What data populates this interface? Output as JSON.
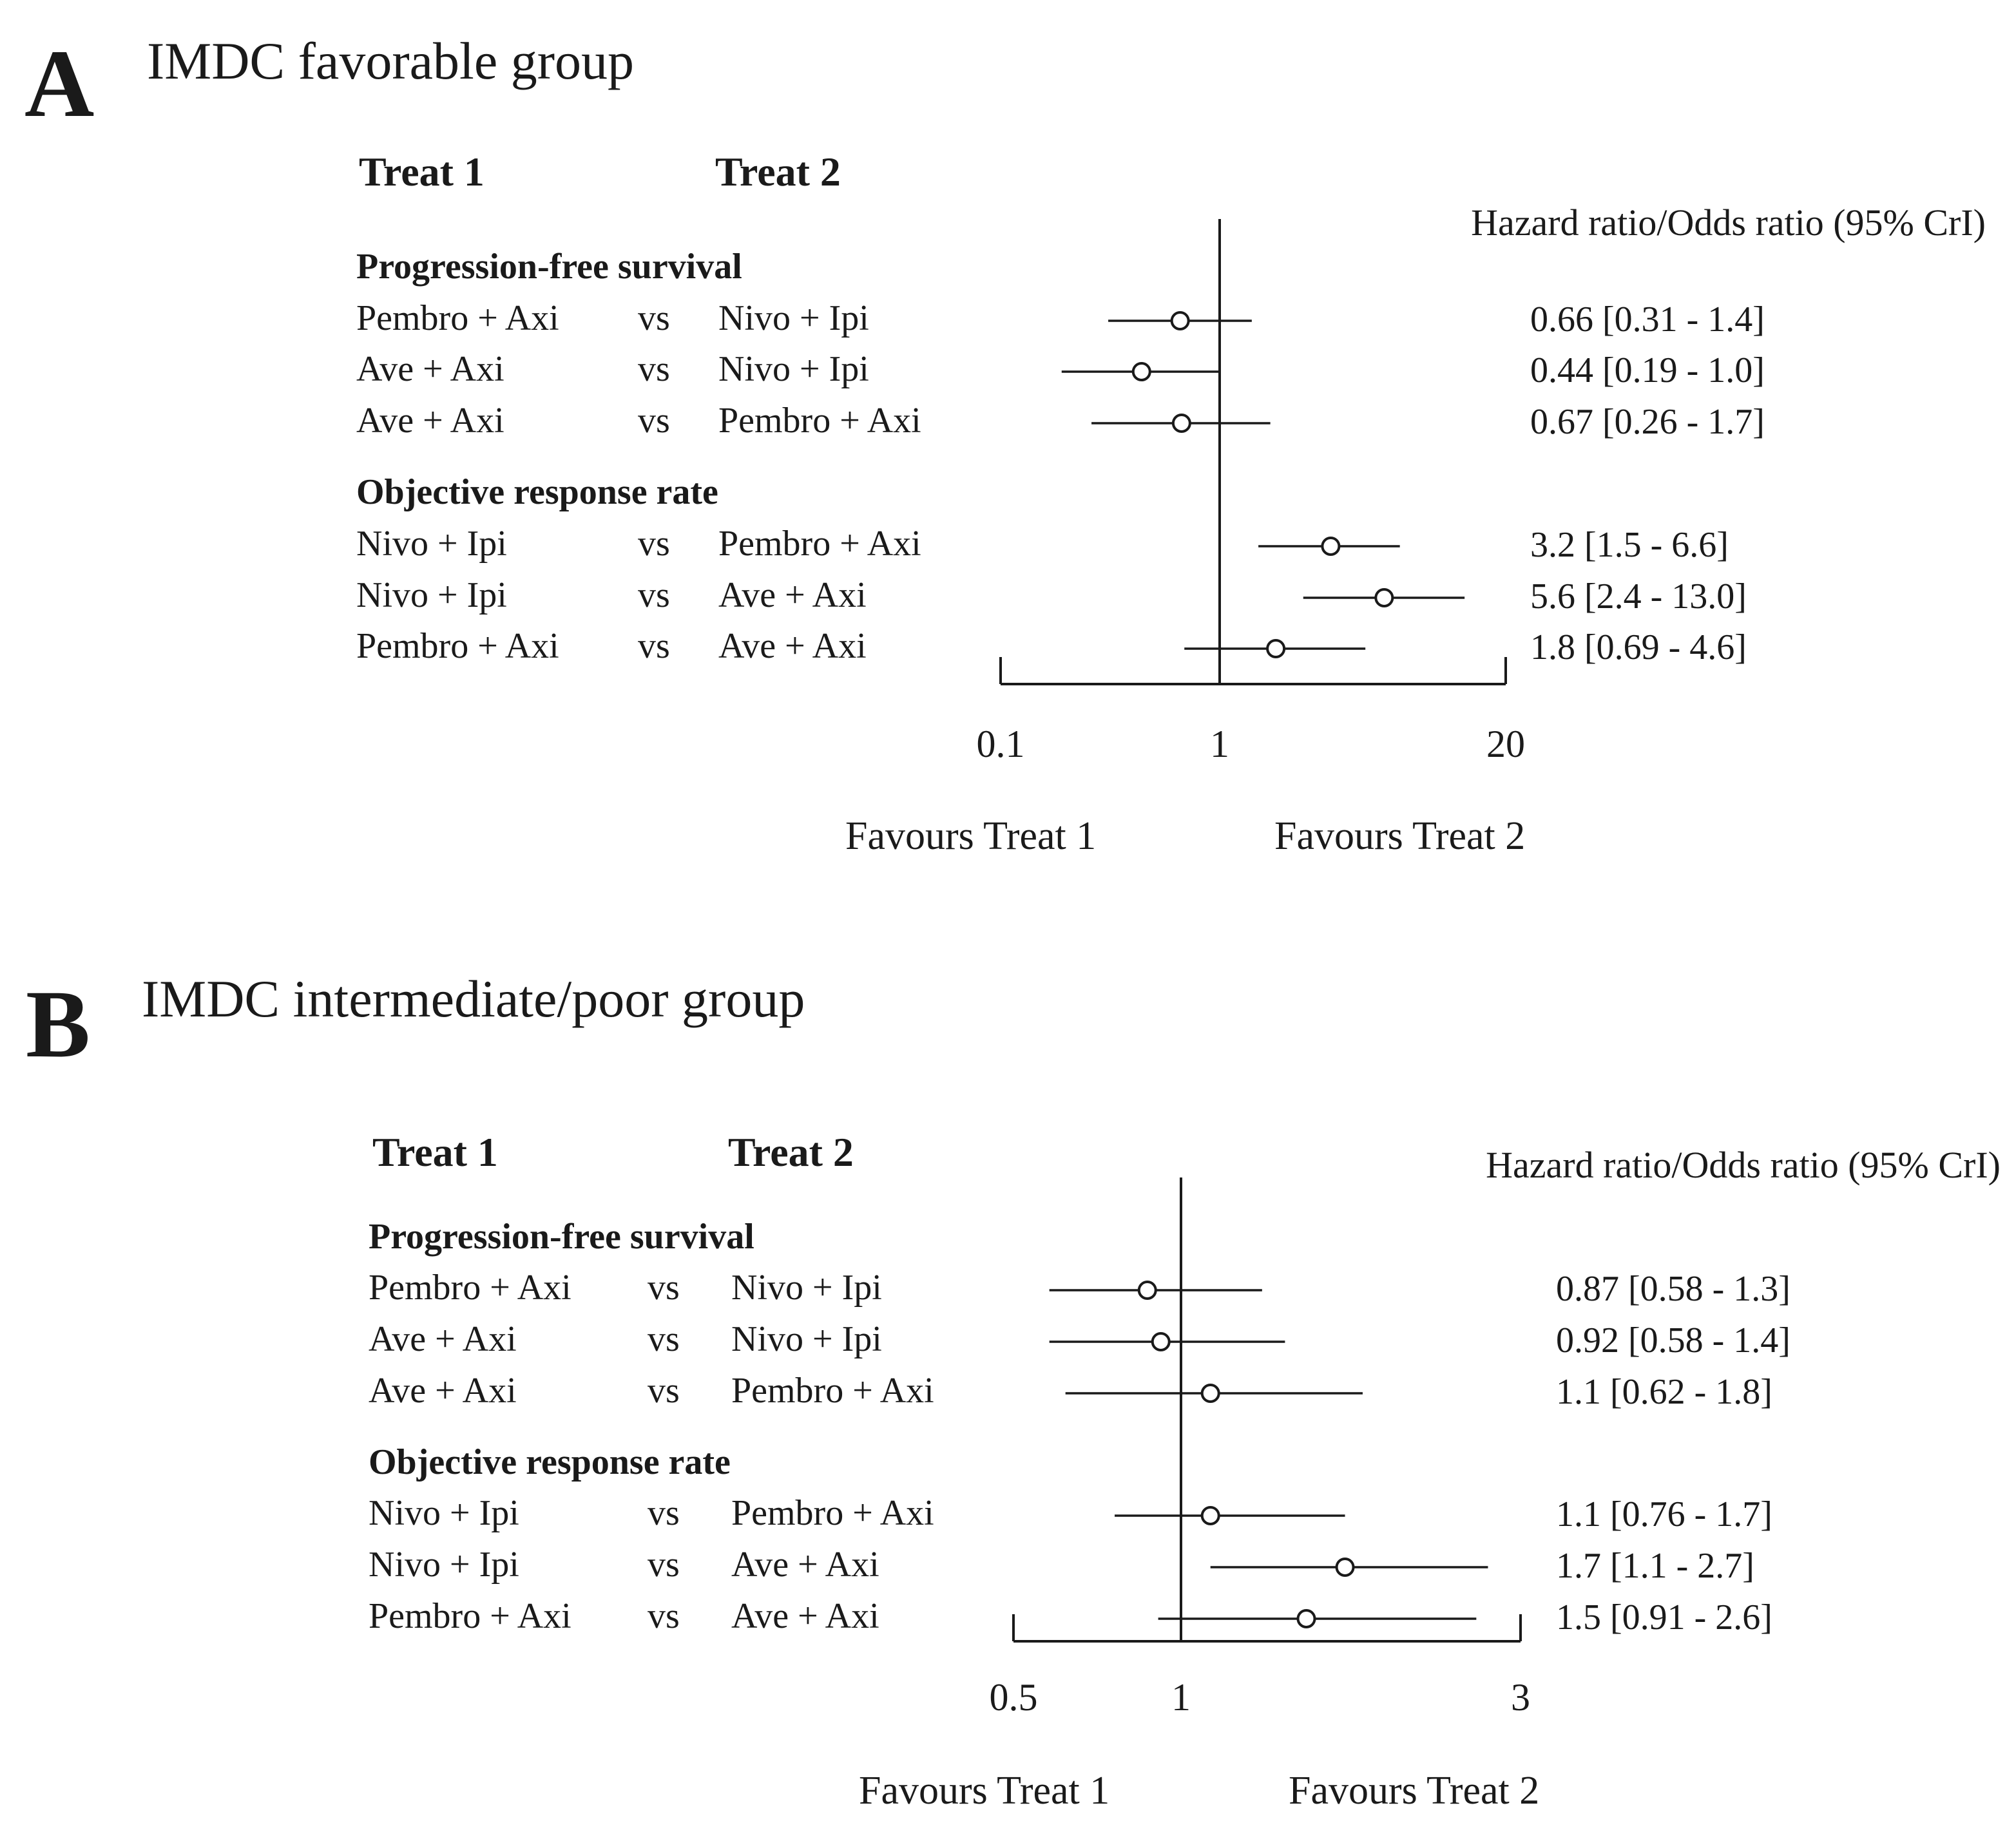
{
  "chart_data": [
    {
      "type": "forest",
      "panel": "A",
      "title": "IMDC favorable group",
      "column_headers": {
        "treat1": "Treat 1",
        "treat2": "Treat 2",
        "estimate": "Hazard ratio/Odds ratio (95% CrI)"
      },
      "x_scale": "log",
      "xlim": [
        0.1,
        20
      ],
      "ticks": [
        0.1,
        1,
        20
      ],
      "tick_labels": [
        "0.1",
        "1",
        "20"
      ],
      "reference_line": 1,
      "favours_left": "Favours Treat 1",
      "favours_right": "Favours Treat 2",
      "sections": [
        {
          "name": "Progression-free survival",
          "rows": [
            {
              "treat1": "Pembro + Axi",
              "vs": "vs",
              "treat2": "Nivo + Ipi",
              "estimate": 0.66,
              "lower": 0.31,
              "upper": 1.4,
              "label": "0.66 [0.31 - 1.4]"
            },
            {
              "treat1": "Ave + Axi",
              "vs": "vs",
              "treat2": "Nivo + Ipi",
              "estimate": 0.44,
              "lower": 0.19,
              "upper": 1.0,
              "label": "0.44 [0.19 - 1.0]"
            },
            {
              "treat1": "Ave + Axi",
              "vs": "vs",
              "treat2": "Pembro + Axi",
              "estimate": 0.67,
              "lower": 0.26,
              "upper": 1.7,
              "label": "0.67 [0.26 - 1.7]"
            }
          ]
        },
        {
          "name": "Objective response rate",
          "rows": [
            {
              "treat1": "Nivo + Ipi",
              "vs": "vs",
              "treat2": "Pembro + Axi",
              "estimate": 3.2,
              "lower": 1.5,
              "upper": 6.6,
              "label": "3.2   [1.5 - 6.6]"
            },
            {
              "treat1": "Nivo + Ipi",
              "vs": "vs",
              "treat2": "Ave + Axi",
              "estimate": 5.6,
              "lower": 2.4,
              "upper": 13.0,
              "label": "5.6   [2.4 - 13.0]"
            },
            {
              "treat1": "Pembro + Axi",
              "vs": "vs",
              "treat2": "Ave + Axi",
              "estimate": 1.8,
              "lower": 0.69,
              "upper": 4.6,
              "label": "1.8   [0.69 - 4.6]"
            }
          ]
        }
      ]
    },
    {
      "type": "forest",
      "panel": "B",
      "title": "IMDC intermediate/poor group",
      "column_headers": {
        "treat1": "Treat 1",
        "treat2": "Treat 2",
        "estimate": "Hazard ratio/Odds ratio (95% CrI)"
      },
      "x_scale": "log",
      "xlim": [
        0.5,
        3
      ],
      "ticks": [
        0.5,
        1,
        3
      ],
      "tick_labels": [
        "0.5",
        "1",
        "3"
      ],
      "reference_line": 1,
      "favours_left": "Favours Treat 1",
      "favours_right": "Favours Treat 2",
      "sections": [
        {
          "name": "Progression-free survival",
          "rows": [
            {
              "treat1": "Pembro + Axi",
              "vs": "vs",
              "treat2": "Nivo + Ipi",
              "estimate": 0.87,
              "lower": 0.58,
              "upper": 1.3,
              "label": "0.87 [0.58 - 1.3]"
            },
            {
              "treat1": "Ave + Axi",
              "vs": "vs",
              "treat2": "Nivo + Ipi",
              "estimate": 0.92,
              "lower": 0.58,
              "upper": 1.4,
              "label": "0.92 [0.58 - 1.4]"
            },
            {
              "treat1": "Ave + Axi",
              "vs": "vs",
              "treat2": "Pembro + Axi",
              "estimate": 1.1,
              "lower": 0.62,
              "upper": 1.8,
              "label": "1.1   [0.62 - 1.8]"
            }
          ]
        },
        {
          "name": "Objective response rate",
          "rows": [
            {
              "treat1": "Nivo + Ipi",
              "vs": "vs",
              "treat2": "Pembro + Axi",
              "estimate": 1.1,
              "lower": 0.76,
              "upper": 1.7,
              "label": "1.1   [0.76 - 1.7]"
            },
            {
              "treat1": "Nivo + Ipi",
              "vs": "vs",
              "treat2": "Ave + Axi",
              "estimate": 1.7,
              "lower": 1.1,
              "upper": 2.7,
              "label": "1.7   [1.1 - 2.7]"
            },
            {
              "treat1": "Pembro + Axi",
              "vs": "vs",
              "treat2": "Ave + Axi",
              "estimate": 1.5,
              "lower": 0.91,
              "upper": 2.6,
              "label": "1.5   [0.91 - 2.6]"
            }
          ]
        }
      ]
    }
  ]
}
